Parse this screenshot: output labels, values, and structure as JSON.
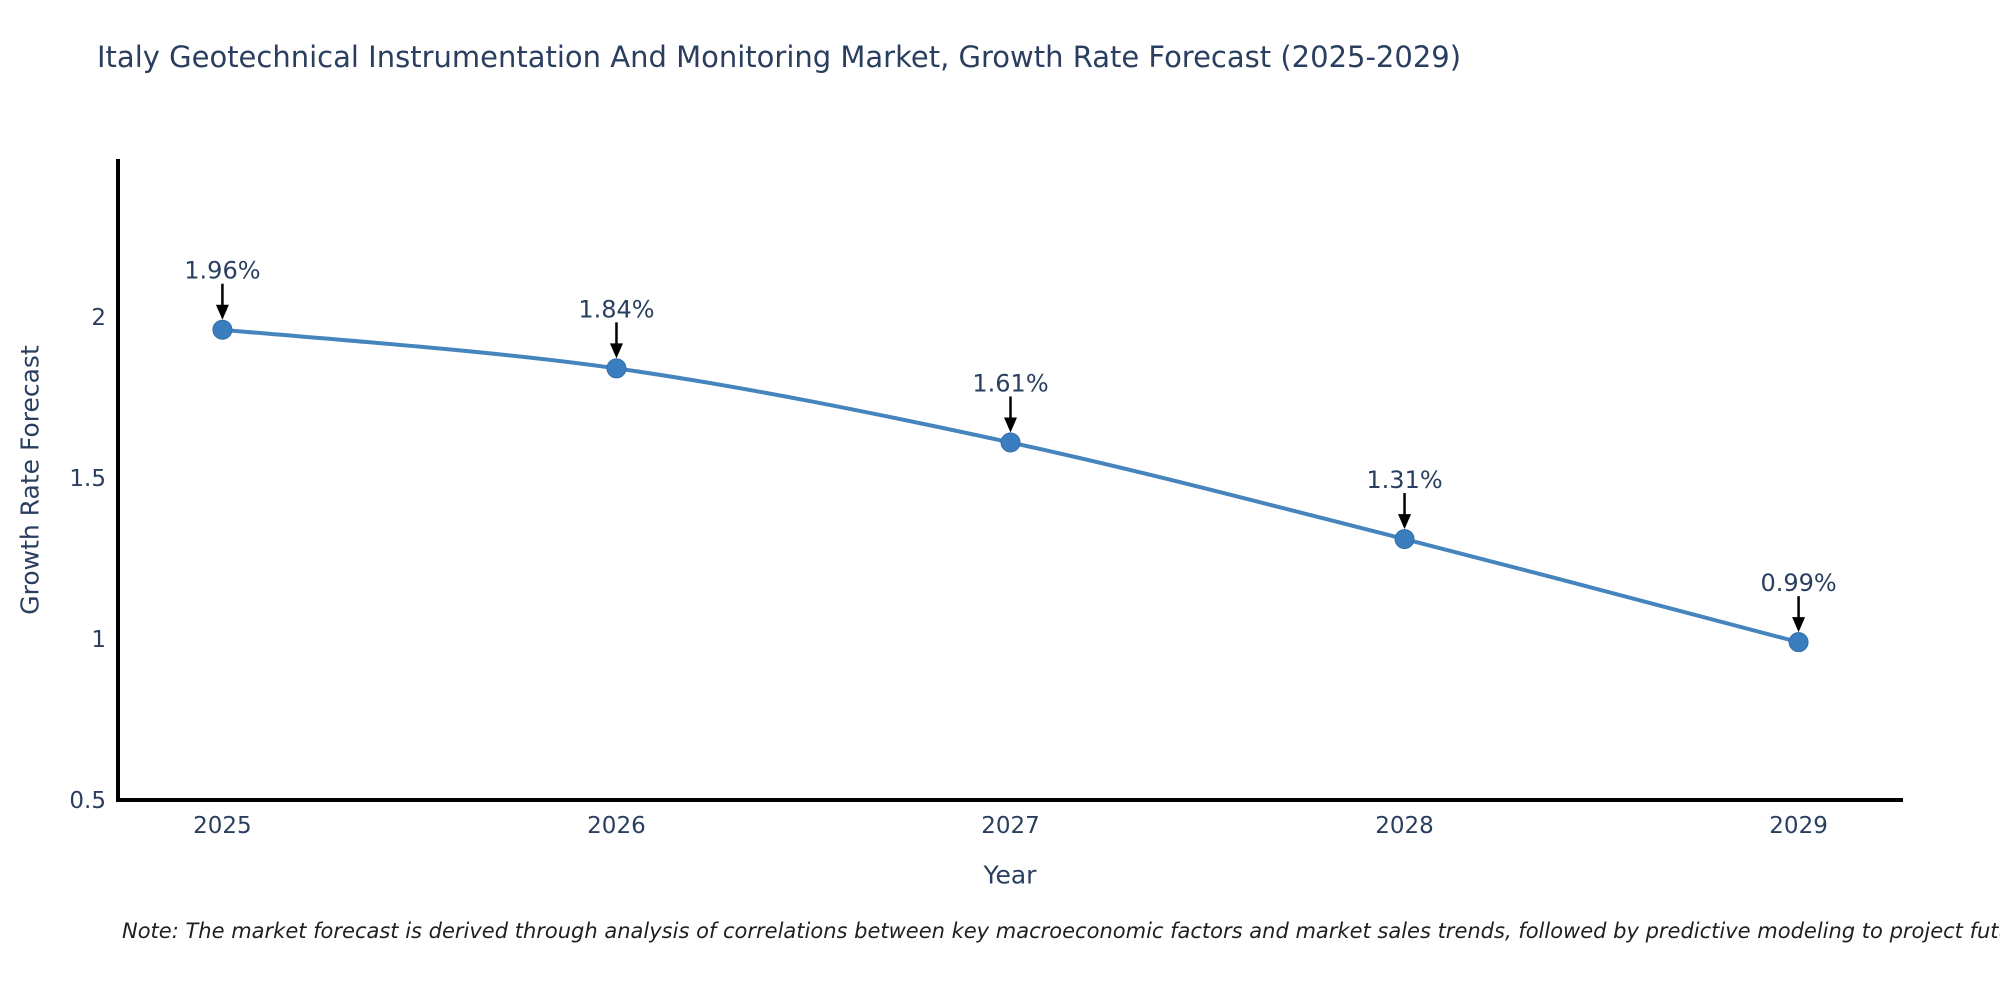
{
  "title": "Italy Geotechnical Instrumentation And Monitoring Market, Growth Rate Forecast (2025-2029)",
  "note": "Note: The market forecast is derived through analysis of correlations between key macroeconomic factors and market sales trends, followed by predictive modeling to project future sales",
  "colors": {
    "line": "#4584bd",
    "marker": "#3b7ebf",
    "marker_edge": "#336da8",
    "axis": "#000000",
    "text": "#2a3f5f",
    "arrow": "#000000",
    "background": "#ffffff"
  },
  "chart_data": {
    "type": "line",
    "title": "Italy Geotechnical Instrumentation And Monitoring Market, Growth Rate Forecast (2025-2029)",
    "x": [
      2025,
      2026,
      2027,
      2028,
      2029
    ],
    "series": [
      {
        "name": "Growth Rate Forecast",
        "values": [
          1.96,
          1.84,
          1.61,
          1.31,
          0.99
        ],
        "point_labels": [
          "1.96%",
          "1.84%",
          "1.61%",
          "1.31%",
          "0.99%"
        ]
      }
    ],
    "xlabel": "Year",
    "ylabel": "Growth Rate Forecast",
    "xtick_labels": [
      "2025",
      "2026",
      "2027",
      "2028",
      "2029"
    ],
    "yticks": [
      0.5,
      1,
      1.5,
      2
    ],
    "ytick_labels": [
      "0.5",
      "1",
      "1.5",
      "2"
    ],
    "xlim": [
      2024.735,
      2029.265
    ],
    "ylim": [
      0.5,
      2.49
    ],
    "grid": false,
    "legend": "none",
    "line_shape": "spline",
    "marker": "circle"
  }
}
